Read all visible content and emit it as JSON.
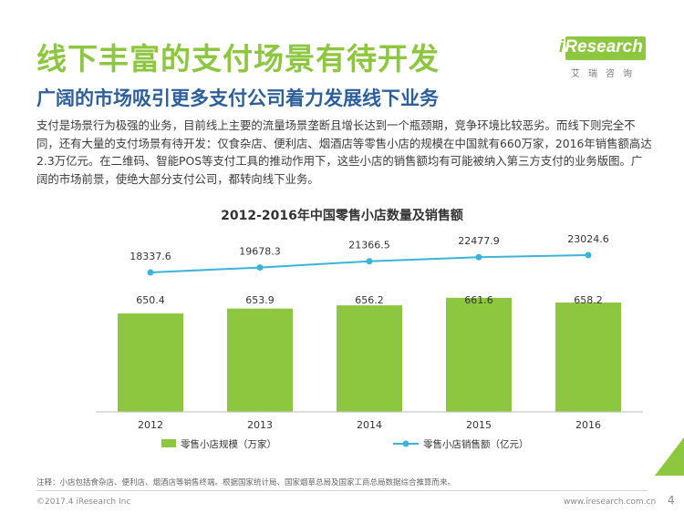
{
  "header": {
    "title": "线下丰富的支付场景有待开发",
    "subtitle": "广阔的市场吸引更多支付公司着力发展线下业务"
  },
  "logo": {
    "brand_i": "i",
    "brand_rest": "Research",
    "sub": "艾瑞咨询"
  },
  "body_text": "支付是场景行为极强的业务，目前线上主要的流量场景垄断且增长达到一个瓶颈期，竞争环境比较恶劣。而线下则完全不同，还有大量的支付场景有待开发：仅食杂店、便利店、烟酒店等零售小店的规模在中国就有660万家，2016年销售额高达2.3万亿元。在二维码、智能POS等支付工具的推动作用下，这些小店的销售额均有可能被纳入第三方支付的业务版图。广阔的市场前景，使绝大部分支付公司，都转向线下业务。",
  "chart_data": {
    "type": "bar",
    "title": "2012-2016年中国零售小店数量及销售额",
    "categories": [
      "2012",
      "2013",
      "2014",
      "2015",
      "2016"
    ],
    "series": [
      {
        "name": "零售小店规模（万家）",
        "type": "bar",
        "values": [
          650.4,
          653.9,
          656.2,
          661.6,
          658.2
        ],
        "labels": [
          "650.4",
          "653.9",
          "656.2",
          "661.6",
          "658.2"
        ],
        "color": "#8dc63f"
      },
      {
        "name": "零售小店销售额（亿元）",
        "type": "line",
        "values": [
          18337.6,
          19678.3,
          21366.5,
          22477.9,
          23024.6
        ],
        "labels": [
          "18337.6",
          "19678.3",
          "21366.5",
          "22477.9",
          "23024.6"
        ],
        "color": "#3ab4dc"
      }
    ],
    "legend": "bottom"
  },
  "footer": {
    "note": "注释：小店包括食杂店、便利店、烟酒店等销售终端。根据国家统计局、国家烟草总局及国家工商总局数据综合推算而来。",
    "left": "©2017.4 iResearch Inc",
    "right": "www.iresearch.com.cn",
    "page": "4"
  }
}
